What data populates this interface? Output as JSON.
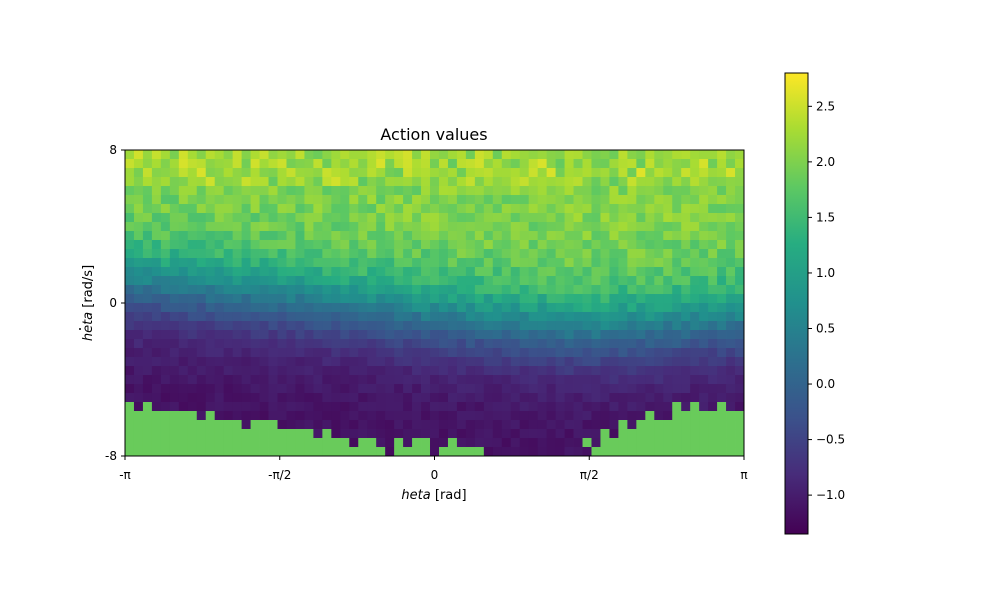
{
  "chart_data": {
    "type": "heatmap",
    "title": "Action values",
    "xlabel": {
      "var": "heta",
      "unit": " [rad]"
    },
    "ylabel": {
      "var": "heta",
      "unit": " [rad/s]"
    },
    "xlim": [
      -3.14159,
      3.14159
    ],
    "ylim": [
      -8,
      8
    ],
    "grid": false,
    "x_ticks": [
      {
        "value": -3.14159,
        "label": "-π"
      },
      {
        "value": -1.5708,
        "label": "-π/2"
      },
      {
        "value": 0,
        "label": "0"
      },
      {
        "value": 1.5708,
        "label": "π/2"
      },
      {
        "value": 3.14159,
        "label": "π"
      }
    ],
    "y_ticks": [
      {
        "value": 8,
        "label": "8"
      },
      {
        "value": 0,
        "label": "0"
      },
      {
        "value": -8,
        "label": "-8"
      }
    ],
    "colormap": "viridis",
    "colorbar": {
      "range": [
        -1.35,
        2.8
      ],
      "ticks": [
        {
          "value": 2.5,
          "label": "2.5"
        },
        {
          "value": 2.0,
          "label": "2.0"
        },
        {
          "value": 1.5,
          "label": "1.5"
        },
        {
          "value": 1.0,
          "label": "1.0"
        },
        {
          "value": 0.5,
          "label": "0.5"
        },
        {
          "value": 0.0,
          "label": "0.0"
        },
        {
          "value": -0.5,
          "label": "−0.5"
        },
        {
          "value": -1.0,
          "label": "−1.0"
        }
      ]
    },
    "grid_shape": {
      "cols": 69,
      "rows": 34
    },
    "value_model": {
      "top_value": 2.05,
      "bottom_value": -1.15,
      "transition_center_theta_dot": [
        {
          "theta": -3.14159,
          "theta_dot": 1.2
        },
        {
          "theta": -1.5708,
          "theta_dot": 0.4
        },
        {
          "theta": 0,
          "theta_dot": -0.6
        },
        {
          "theta": 1.5708,
          "theta_dot": -1.4
        },
        {
          "theta": 3.14159,
          "theta_dot": -0.8
        }
      ],
      "noise_amplitude": 0.18,
      "fill_value": 1.85,
      "unvisited_boundary": [
        {
          "theta": -3.14159,
          "theta_dot": -5.5
        },
        {
          "theta": -2.3,
          "theta_dot": -5.8
        },
        {
          "theta": -1.6,
          "theta_dot": -6.2
        },
        {
          "theta": -1.2,
          "theta_dot": -6.9
        },
        {
          "theta": -0.6,
          "theta_dot": -7.3
        },
        {
          "theta": 0.2,
          "theta_dot": -7.6
        },
        {
          "theta": 0.8,
          "theta_dot": -8.0
        },
        {
          "theta": 1.45,
          "theta_dot": -8.0
        },
        {
          "theta": 1.7,
          "theta_dot": -7.0
        },
        {
          "theta": 2.3,
          "theta_dot": -5.8
        },
        {
          "theta": 3.14159,
          "theta_dot": -5.4
        }
      ]
    }
  }
}
